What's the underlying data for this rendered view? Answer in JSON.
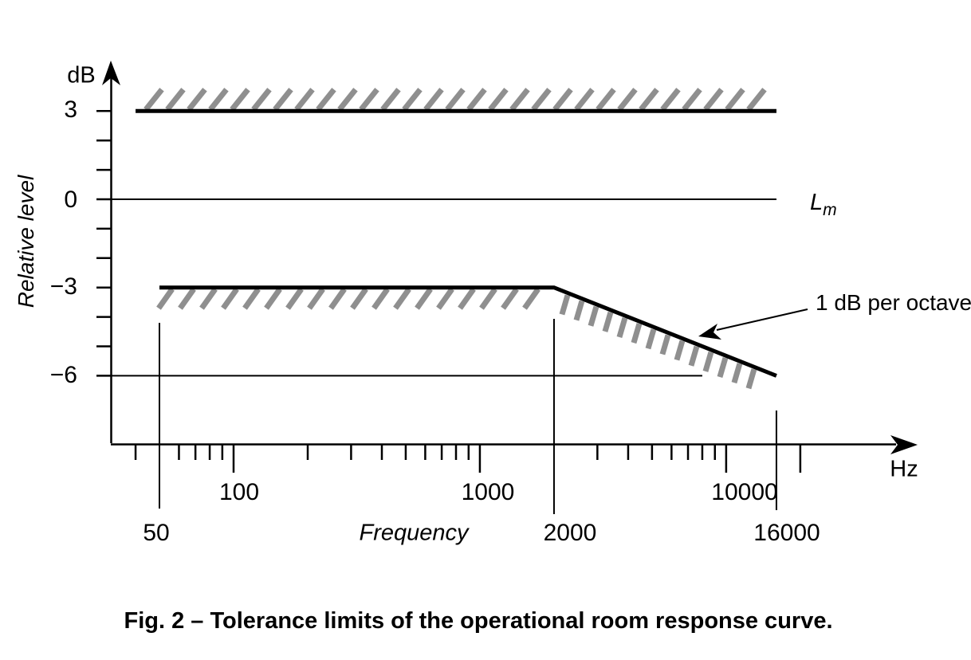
{
  "colors": {
    "line": "#000000",
    "hatch": "#8f8f8f",
    "background": "#ffffff"
  },
  "labels": {
    "y_unit": "dB",
    "y_title": "Relative level",
    "y_ticks": [
      "3",
      "0",
      "−3",
      "−6"
    ],
    "x_majors": [
      "100",
      "1000",
      "10000"
    ],
    "x_bounds": [
      "50",
      "2000",
      "16000"
    ],
    "x_title": "Frequency",
    "x_unit": "Hz",
    "reference": "L",
    "reference_sub": "m",
    "slope_note": "1 dB per octave",
    "caption": "Fig. 2 – Tolerance limits of the operational room response curve."
  },
  "chart_data": {
    "type": "line",
    "title": "Fig. 2 – Tolerance limits of the operational room response curve.",
    "xlabel": "Frequency",
    "x_unit": "Hz",
    "ylabel": "Relative level",
    "y_unit": "dB",
    "x_scale": "log",
    "x_range": [
      40,
      20000
    ],
    "ylim": [
      -8,
      4
    ],
    "grid": false,
    "y_ticks_db": [
      3,
      2,
      1,
      0,
      -1,
      -2,
      -3,
      -4,
      -5,
      -6
    ],
    "y_labeled_ticks_db": [
      3,
      0,
      -3,
      -6
    ],
    "x_minor_ticks_hz": [
      40,
      60,
      70,
      80,
      90,
      200,
      300,
      400,
      500,
      600,
      700,
      800,
      900,
      3000,
      4000,
      5000,
      6000,
      7000,
      8000,
      9000
    ],
    "x_major_ticks_hz": [
      100,
      1000,
      10000,
      20000
    ],
    "x_labeled_major_ticks_hz": [
      100,
      1000,
      10000
    ],
    "boundary_frequencies_hz": [
      50,
      2000,
      16000
    ],
    "series": [
      {
        "name": "upper_tolerance_limit",
        "hatch": "above",
        "points_hz_db": [
          [
            40,
            3
          ],
          [
            16000,
            3
          ]
        ]
      },
      {
        "name": "lower_tolerance_limit",
        "hatch": "below",
        "points_hz_db": [
          [
            50,
            -3
          ],
          [
            2000,
            -3
          ],
          [
            16000,
            -6
          ]
        ]
      }
    ],
    "reference_level": {
      "db": 0,
      "label": "Lm",
      "extends_to_hz": 16000
    },
    "floor_line": {
      "db": -6,
      "extends_to_hz": 8000
    },
    "slope_db_per_octave": 1,
    "legend_position": "none"
  }
}
